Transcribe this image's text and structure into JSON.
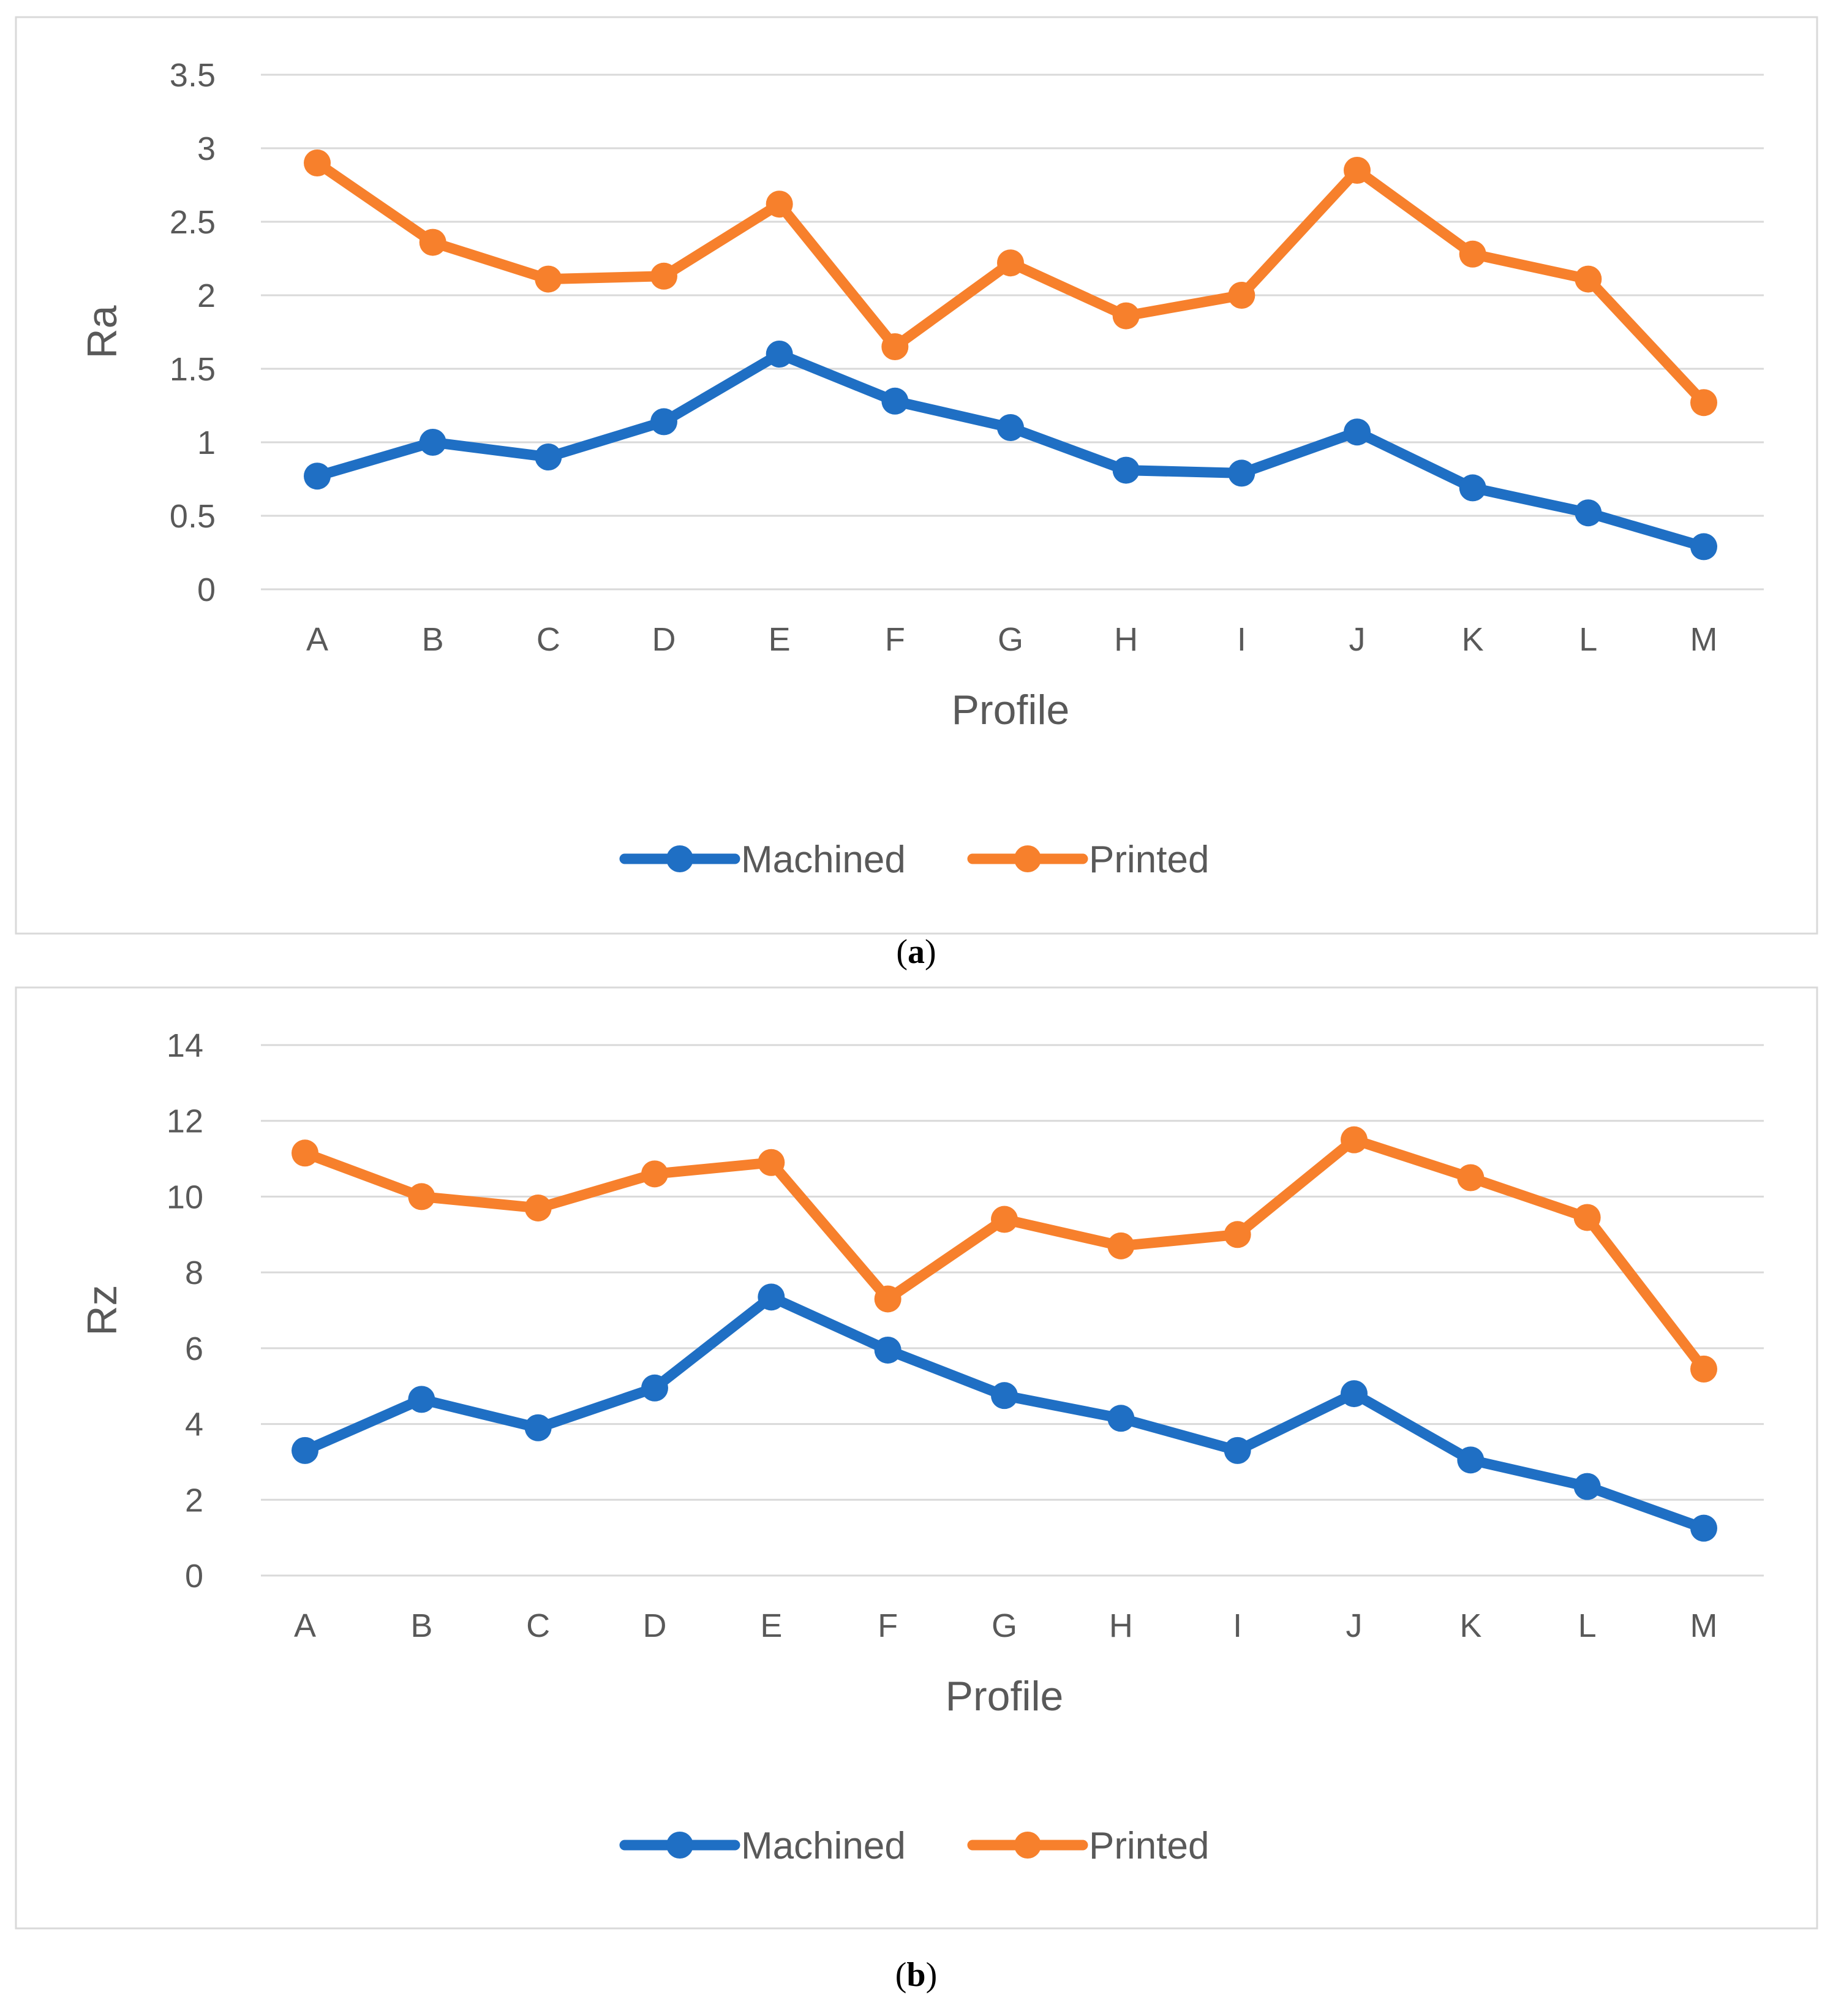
{
  "chart_data": [
    {
      "type": "line",
      "panel_label": "(a)",
      "panel_letter": "a",
      "categories": [
        "A",
        "B",
        "C",
        "D",
        "E",
        "F",
        "G",
        "H",
        "I",
        "J",
        "K",
        "L",
        "M"
      ],
      "series": [
        {
          "name": "Machined",
          "color": "#1f6fc4",
          "values": [
            0.77,
            1.0,
            0.9,
            1.14,
            1.6,
            1.28,
            1.1,
            0.81,
            0.79,
            1.07,
            0.69,
            0.52,
            0.29
          ]
        },
        {
          "name": "Printed",
          "color": "#f7802c",
          "values": [
            2.9,
            2.36,
            2.11,
            2.13,
            2.62,
            1.65,
            2.22,
            1.86,
            2.0,
            2.85,
            2.28,
            2.11,
            1.27
          ]
        }
      ],
      "xlabel": "Profile",
      "ylabel": "Ra",
      "ylim": [
        0,
        3.5
      ],
      "yticks": [
        "0",
        "0.5",
        "1",
        "1.5",
        "2",
        "2.5",
        "3",
        "3.5"
      ],
      "grid": true,
      "legend_position": "bottom"
    },
    {
      "type": "line",
      "panel_label": "(b)",
      "panel_letter": "b",
      "categories": [
        "A",
        "B",
        "C",
        "D",
        "E",
        "F",
        "G",
        "H",
        "I",
        "J",
        "K",
        "L",
        "M"
      ],
      "series": [
        {
          "name": "Machined",
          "color": "#1f6fc4",
          "values": [
            3.3,
            4.65,
            3.9,
            4.95,
            7.35,
            5.95,
            4.75,
            4.15,
            3.3,
            4.8,
            3.05,
            2.35,
            1.25
          ]
        },
        {
          "name": "Printed",
          "color": "#f7802c",
          "values": [
            11.15,
            10.0,
            9.7,
            10.6,
            10.9,
            7.3,
            9.4,
            8.7,
            9.0,
            11.5,
            10.5,
            9.45,
            5.45
          ]
        }
      ],
      "xlabel": "Profile",
      "ylabel": "Rz",
      "ylim": [
        0,
        14
      ],
      "yticks": [
        "0",
        "2",
        "4",
        "6",
        "8",
        "10",
        "12",
        "14"
      ],
      "grid": true,
      "legend_position": "bottom"
    }
  ]
}
